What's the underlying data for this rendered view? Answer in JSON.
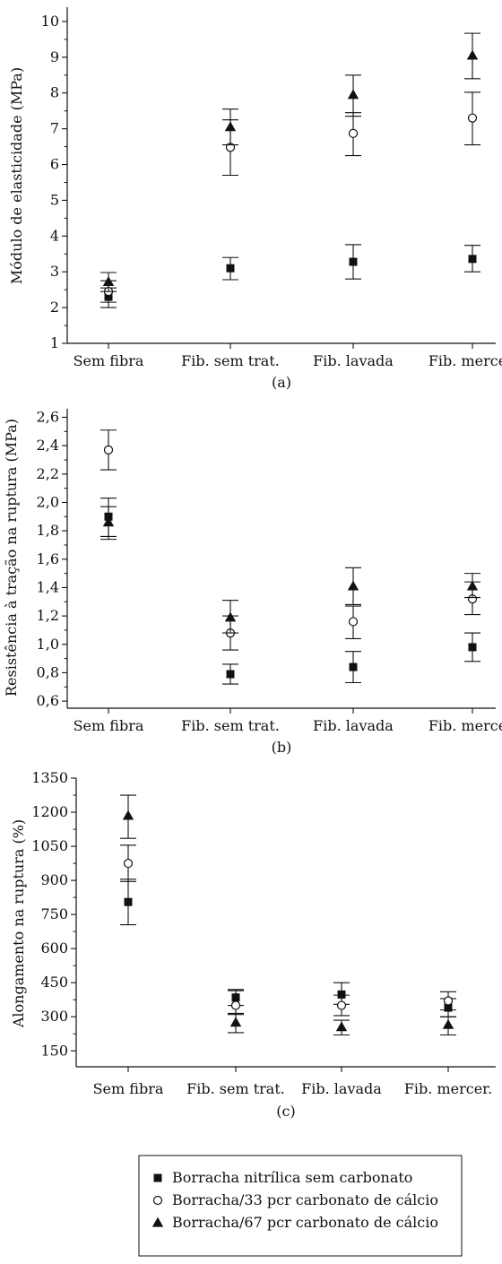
{
  "chart_data": [
    {
      "type": "scatter",
      "panel_label": "(a)",
      "ylabel": "Módulo de elasticidade (MPa)",
      "xlabel": "",
      "categories": [
        "Sem fibra",
        "Fib. sem trat.",
        "Fib. lavada",
        "Fib. mercer."
      ],
      "yticks": [
        "1",
        "2",
        "3",
        "4",
        "5",
        "6",
        "7",
        "8",
        "9",
        "10"
      ],
      "ylim": [
        1,
        10.4
      ],
      "series": [
        {
          "marker": "square",
          "values": [
            2.3,
            3.1,
            3.28,
            3.36
          ],
          "err_low": [
            2.0,
            2.78,
            2.8,
            3.0
          ],
          "err_high": [
            2.55,
            3.4,
            3.76,
            3.74
          ]
        },
        {
          "marker": "circle",
          "values": [
            2.45,
            6.48,
            6.87,
            7.3
          ],
          "err_low": [
            2.15,
            5.7,
            6.25,
            6.55
          ],
          "err_high": [
            2.75,
            7.25,
            7.45,
            8.02
          ]
        },
        {
          "marker": "triangle",
          "values": [
            2.72,
            7.05,
            7.95,
            9.05
          ],
          "err_low": [
            2.45,
            6.55,
            7.35,
            8.4
          ],
          "err_high": [
            2.98,
            7.55,
            8.5,
            9.67
          ]
        }
      ]
    },
    {
      "type": "scatter",
      "panel_label": "(b)",
      "ylabel": "Resistência à tração na ruptura (MPa)",
      "xlabel": "",
      "categories": [
        "Sem fibra",
        "Fib. sem trat.",
        "Fib. lavada",
        "Fib. mercer."
      ],
      "yticks": [
        "0,6",
        "0,8",
        "1,0",
        "1,2",
        "1,4",
        "1,6",
        "1,8",
        "2,0",
        "2,2",
        "2,4",
        "2,6"
      ],
      "ylim": [
        0.55,
        2.66
      ],
      "series": [
        {
          "marker": "square",
          "values": [
            1.9,
            0.79,
            0.84,
            0.98
          ],
          "err_low": [
            1.76,
            0.72,
            0.73,
            0.88
          ],
          "err_high": [
            2.03,
            0.86,
            0.95,
            1.08
          ]
        },
        {
          "marker": "circle",
          "values": [
            2.37,
            1.08,
            1.16,
            1.32
          ],
          "err_low": [
            2.23,
            0.96,
            1.04,
            1.21
          ],
          "err_high": [
            2.51,
            1.2,
            1.27,
            1.44
          ]
        },
        {
          "marker": "triangle",
          "values": [
            1.86,
            1.19,
            1.41,
            1.41
          ],
          "err_low": [
            1.74,
            1.08,
            1.28,
            1.33
          ],
          "err_high": [
            1.97,
            1.31,
            1.54,
            1.5
          ]
        }
      ]
    },
    {
      "type": "scatter",
      "panel_label": "(c)",
      "ylabel": "Alongamento na ruptura (%)",
      "xlabel": "",
      "categories": [
        "Sem fibra",
        "Fib. sem trat.",
        "Fib. lavada",
        "Fib. mercer."
      ],
      "yticks": [
        "150",
        "300",
        "450",
        "600",
        "750",
        "900",
        "1050",
        "1200",
        "1350"
      ],
      "ylim": [
        80,
        1350
      ],
      "series": [
        {
          "marker": "square",
          "values": [
            805,
            385,
            398,
            340
          ],
          "err_low": [
            705,
            350,
            355,
            300
          ],
          "err_high": [
            905,
            420,
            450,
            380
          ]
        },
        {
          "marker": "circle",
          "values": [
            975,
            350,
            350,
            370
          ],
          "err_low": [
            895,
            310,
            305,
            330
          ],
          "err_high": [
            1055,
            415,
            395,
            410
          ]
        },
        {
          "marker": "triangle",
          "values": [
            1185,
            275,
            255,
            265
          ],
          "err_low": [
            1085,
            230,
            220,
            220
          ],
          "err_high": [
            1275,
            315,
            285,
            300
          ]
        }
      ]
    }
  ],
  "legend": {
    "entries": [
      {
        "marker": "square",
        "label": "Borracha nitrílica sem carbonato"
      },
      {
        "marker": "circle",
        "label": "Borracha/33 pcr carbonato de cálcio"
      },
      {
        "marker": "triangle",
        "label": "Borracha/67 pcr carbonato de cálcio"
      }
    ]
  }
}
